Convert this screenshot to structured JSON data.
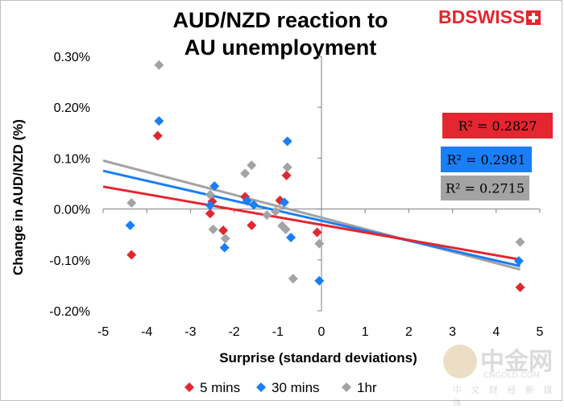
{
  "brand": {
    "logo_text_bd": "BD",
    "logo_text_swiss": "SWISS",
    "logo_icon": "swiss-cross-icon"
  },
  "watermark": {
    "main": "中金网",
    "site": "CNGOLD.COM",
    "tagline": "中 文 财 经 新 媒 体"
  },
  "colors": {
    "red": "#e3262f",
    "blue": "#1a7ef5",
    "gray": "#a3a3a3"
  },
  "chart_data": {
    "type": "scatter",
    "title_line1": "AUD/NZD reaction to",
    "title_line2": "AU unemployment",
    "xlabel": "Surprise (standard deviations)",
    "ylabel": "Change in AUD/NZD (%)",
    "xlim": [
      -5,
      5
    ],
    "ylim": [
      -0.2,
      0.3
    ],
    "x_ticks": [
      -5,
      -4,
      -3,
      -2,
      -1,
      0,
      1,
      2,
      3,
      4,
      5
    ],
    "x_tick_labels": [
      "-5",
      "-4",
      "-3",
      "-2",
      "-1",
      "0",
      "1",
      "2",
      "3",
      "4",
      "5"
    ],
    "y_ticks": [
      -0.2,
      -0.1,
      0,
      0.1,
      0.2,
      0.3
    ],
    "y_tick_labels": [
      "-0.20%",
      "-0.10%",
      "0.00%",
      "0.10%",
      "0.20%",
      "0.30%"
    ],
    "grid": false,
    "legend_position": "bottom",
    "series": [
      {
        "name": "5 mins",
        "color": "#e3262f",
        "r2_label": "R² = 0.2827",
        "trend": {
          "slope": -0.015,
          "intercept": -0.031
        },
        "points": [
          [
            -4.35,
            -0.09
          ],
          [
            -3.75,
            0.144
          ],
          [
            -2.55,
            -0.009
          ],
          [
            -2.5,
            0.015
          ],
          [
            -2.25,
            -0.042
          ],
          [
            -1.75,
            0.024
          ],
          [
            -1.6,
            -0.032
          ],
          [
            -0.95,
            0.017
          ],
          [
            -0.8,
            0.066
          ],
          [
            -0.1,
            -0.046
          ],
          [
            4.55,
            -0.154
          ]
        ]
      },
      {
        "name": "30 mins",
        "color": "#1a7ef5",
        "r2_label": "R² = 0.2981",
        "trend": {
          "slope": -0.0196,
          "intercept": -0.023
        },
        "points": [
          [
            -4.38,
            -0.032
          ],
          [
            -3.72,
            0.173
          ],
          [
            -2.55,
            0.007
          ],
          [
            -2.45,
            0.045
          ],
          [
            -2.22,
            -0.076
          ],
          [
            -1.7,
            0.016
          ],
          [
            -1.55,
            0.008
          ],
          [
            -0.85,
            0.013
          ],
          [
            -0.78,
            0.133
          ],
          [
            -0.7,
            -0.056
          ],
          [
            -0.05,
            -0.141
          ],
          [
            4.52,
            -0.102
          ]
        ]
      },
      {
        "name": "1hr",
        "color": "#a3a3a3",
        "r2_label": "R² = 0.2715",
        "trend": {
          "slope": -0.0224,
          "intercept": -0.0169
        },
        "points": [
          [
            -4.35,
            0.012
          ],
          [
            -3.72,
            0.283
          ],
          [
            -2.55,
            0.028
          ],
          [
            -2.48,
            -0.04
          ],
          [
            -2.2,
            -0.058
          ],
          [
            -1.75,
            0.07
          ],
          [
            -1.6,
            0.086
          ],
          [
            -1.25,
            -0.012
          ],
          [
            -1.05,
            -0.005
          ],
          [
            -0.9,
            -0.033
          ],
          [
            -0.82,
            -0.04
          ],
          [
            -0.78,
            0.082
          ],
          [
            -0.65,
            -0.137
          ],
          [
            -0.05,
            -0.068
          ],
          [
            4.55,
            -0.065
          ]
        ]
      }
    ]
  }
}
